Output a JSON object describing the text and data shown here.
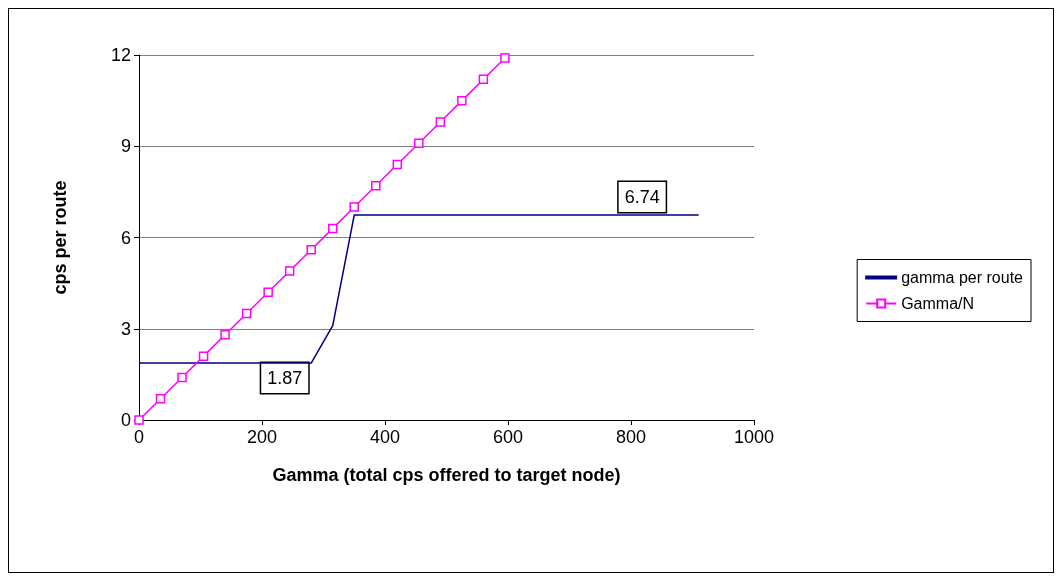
{
  "chart_data": {
    "type": "line",
    "xlabel": "Gamma (total cps offered to target node)",
    "ylabel": "cps per route",
    "xlim": [
      0,
      1000
    ],
    "xticks": [
      0,
      200,
      400,
      600,
      800,
      1000
    ],
    "ylim": [
      0,
      12
    ],
    "yticks": [
      0,
      3,
      6,
      9,
      12
    ],
    "grid": "y",
    "legend": "right",
    "series": [
      {
        "name": "gamma per route",
        "color": "#000080",
        "marker": "none",
        "x": [
          0,
          280,
          315,
          350,
          910
        ],
        "values": [
          1.87,
          1.87,
          3.1,
          6.74,
          6.74
        ]
      },
      {
        "name": "Gamma/N",
        "color": "#ff00ff",
        "marker": "square",
        "x": [
          0,
          35,
          70,
          105,
          140,
          175,
          210,
          245,
          280,
          315,
          350,
          385,
          420,
          455,
          490,
          525,
          560,
          595
        ],
        "values": [
          0,
          0.7,
          1.4,
          2.1,
          2.8,
          3.5,
          4.2,
          4.9,
          5.6,
          6.3,
          7.0,
          7.7,
          8.4,
          9.1,
          9.8,
          10.5,
          11.2,
          11.9
        ]
      }
    ],
    "annotations": [
      {
        "text": "1.87",
        "x": 280,
        "y": 1.87
      },
      {
        "text": "6.74",
        "x": 910,
        "y": 6.74
      }
    ]
  }
}
